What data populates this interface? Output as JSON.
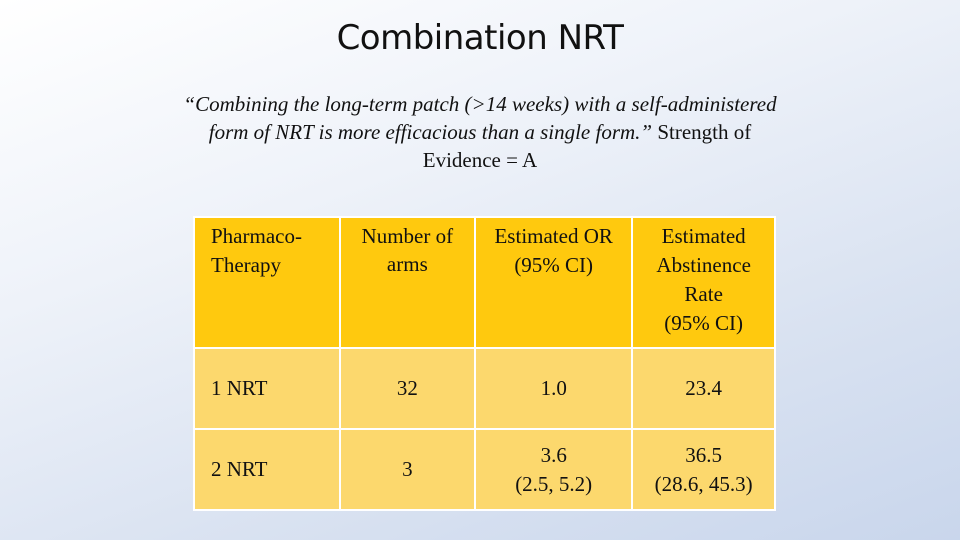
{
  "title": "Combination NRT",
  "quote": {
    "italic_text": "“Combining the long-term patch (>14 weeks) with a self-administered form of NRT is more efficacious than a single form.”",
    "normal_text": "Strength of Evidence = A"
  },
  "table": {
    "headers": [
      [
        "Pharmaco-",
        "Therapy"
      ],
      [
        "Number of",
        "arms"
      ],
      [
        "Estimated OR",
        "(95% CI)"
      ],
      [
        "Estimated",
        "Abstinence",
        "Rate",
        "(95% CI)"
      ]
    ],
    "rows": [
      {
        "label": "1 NRT",
        "arms": "32",
        "or": [
          "1.0"
        ],
        "rate": [
          "23.4"
        ]
      },
      {
        "label": "2 NRT",
        "arms": "3",
        "or": [
          "3.6",
          "(2.5, 5.2)"
        ],
        "rate": [
          "36.5",
          "(28.6, 45.3)"
        ]
      }
    ]
  },
  "colors": {
    "header_fill": "#ffc90e",
    "body_fill": "#fcd86d",
    "cell_border": "#ffffff"
  }
}
